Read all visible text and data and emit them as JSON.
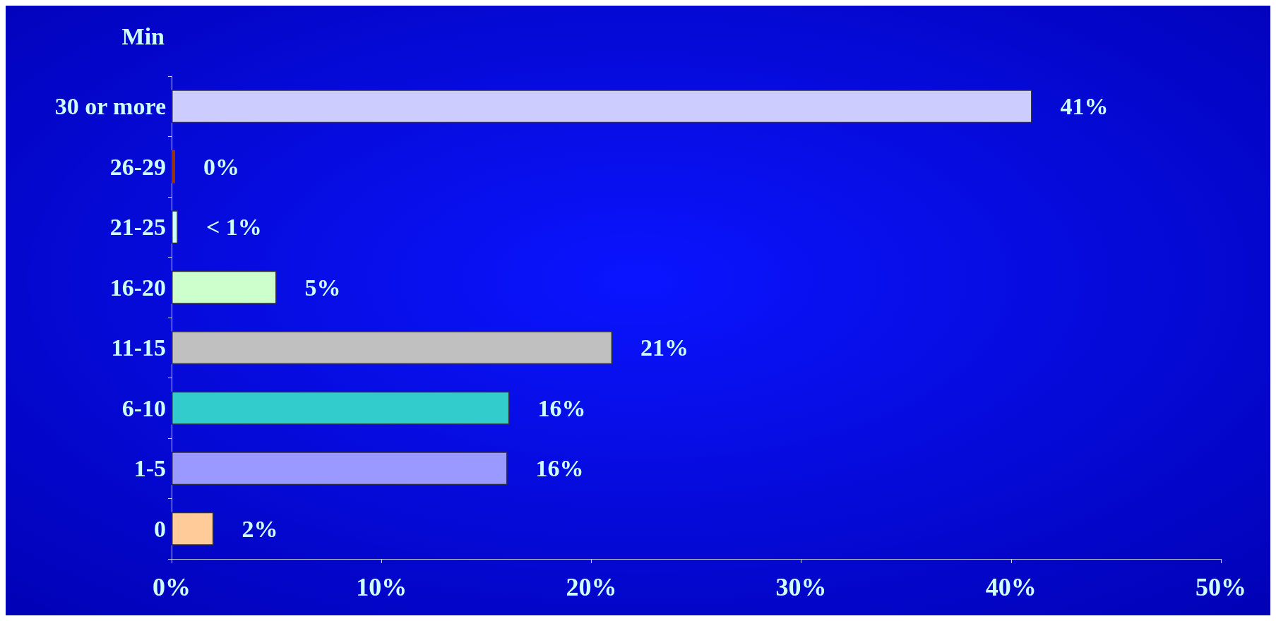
{
  "chart_data": {
    "type": "bar",
    "orientation": "horizontal",
    "ylabel": "Min",
    "categories": [
      "30 or more",
      "26-29",
      "21-25",
      "16-20",
      "11-15",
      "6-10",
      "1-5",
      "0"
    ],
    "values": [
      41,
      0,
      0.3,
      5,
      21,
      16.1,
      16,
      2
    ],
    "colors": [
      "#ccccff",
      "#993300",
      "#ccffff",
      "#ccffcc",
      "#c0c0c0",
      "#33cccc",
      "#9999ff",
      "#ffcc99"
    ],
    "value_labels": [
      "41%",
      "0%",
      "< 1%",
      "5%",
      "21%",
      "16%",
      "16%",
      "2%"
    ],
    "xlim": [
      0,
      50
    ],
    "xticks": [
      {
        "value": 0,
        "label": "0%"
      },
      {
        "value": 10,
        "label": "10%"
      },
      {
        "value": 20,
        "label": "20%"
      },
      {
        "value": 30,
        "label": "30%"
      },
      {
        "value": 40,
        "label": "40%"
      },
      {
        "value": 50,
        "label": "50%"
      }
    ],
    "grid": false
  }
}
